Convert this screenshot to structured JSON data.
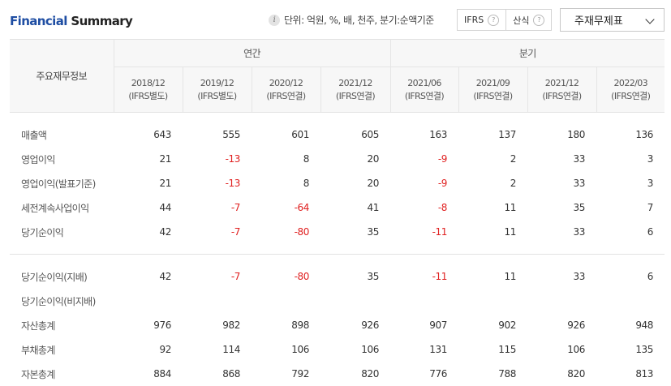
{
  "header": {
    "title_part1": "Financial",
    "title_part2": " Summary",
    "unit_text": "단위: 억원, %, 배, 천주, 분기:순액기준",
    "toggle_ifrs": "IFRS",
    "toggle_formula": "산식",
    "help_symbol": "?",
    "info_symbol": "i",
    "dropdown_value": "주재무제표"
  },
  "table": {
    "row_header": "주요재무정보",
    "group_annual": "연간",
    "group_quarter": "분기",
    "columns": [
      {
        "period": "2018/12",
        "basis": "(IFRS별도)"
      },
      {
        "period": "2019/12",
        "basis": "(IFRS별도)"
      },
      {
        "period": "2020/12",
        "basis": "(IFRS연결)"
      },
      {
        "period": "2021/12",
        "basis": "(IFRS연결)"
      },
      {
        "period": "2021/06",
        "basis": "(IFRS연결)"
      },
      {
        "period": "2021/09",
        "basis": "(IFRS연결)"
      },
      {
        "period": "2021/12",
        "basis": "(IFRS연결)"
      },
      {
        "period": "2022/03",
        "basis": "(IFRS연결)"
      }
    ],
    "rows": [
      {
        "label": "매출액",
        "values": [
          "643",
          "555",
          "601",
          "605",
          "163",
          "137",
          "180",
          "136"
        ]
      },
      {
        "label": "영업이익",
        "values": [
          "21",
          "-13",
          "8",
          "20",
          "-9",
          "2",
          "33",
          "3"
        ]
      },
      {
        "label": "영업이익(발표기준)",
        "values": [
          "21",
          "-13",
          "8",
          "20",
          "-9",
          "2",
          "33",
          "3"
        ]
      },
      {
        "label": "세전계속사업이익",
        "values": [
          "44",
          "-7",
          "-64",
          "41",
          "-8",
          "11",
          "35",
          "7"
        ]
      },
      {
        "label": "당기순이익",
        "values": [
          "42",
          "-7",
          "-80",
          "35",
          "-11",
          "11",
          "33",
          "6"
        ]
      },
      {
        "label": "당기순이익(지배)",
        "values": [
          "42",
          "-7",
          "-80",
          "35",
          "-11",
          "11",
          "33",
          "6"
        ]
      },
      {
        "label": "당기순이익(비지배)",
        "values": [
          "",
          "",
          "",
          "",
          "",
          "",
          "",
          ""
        ]
      },
      {
        "label": "자산총계",
        "values": [
          "976",
          "982",
          "898",
          "926",
          "907",
          "902",
          "926",
          "948"
        ]
      },
      {
        "label": "부채총계",
        "values": [
          "92",
          "114",
          "106",
          "106",
          "131",
          "115",
          "106",
          "135"
        ]
      },
      {
        "label": "자본총계",
        "values": [
          "884",
          "868",
          "792",
          "820",
          "776",
          "788",
          "820",
          "813"
        ]
      }
    ]
  },
  "colors": {
    "negative": "#e02020",
    "title_accent": "#1f4ea3"
  }
}
